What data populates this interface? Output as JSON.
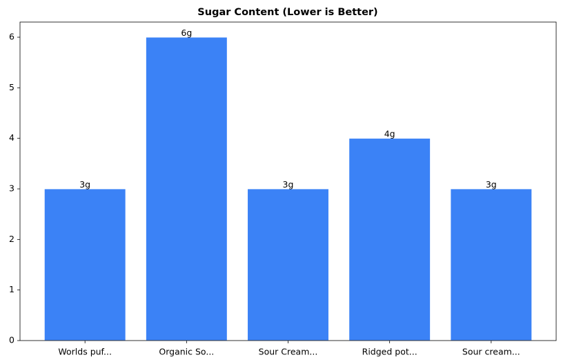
{
  "chart_data": {
    "type": "bar",
    "title": "Sugar Content (Lower is Better)",
    "categories": [
      "Worlds puf...",
      "Organic So...",
      "Sour Cream...",
      "Ridged pot...",
      "Sour cream..."
    ],
    "values": [
      3,
      6,
      3,
      4,
      3
    ],
    "value_labels": [
      "3g",
      "6g",
      "3g",
      "4g",
      "3g"
    ],
    "color": "#3b82f6",
    "ylim": [
      0,
      6.3
    ],
    "yticks": [
      0,
      1,
      2,
      3,
      4,
      5,
      6
    ],
    "grid": false
  }
}
